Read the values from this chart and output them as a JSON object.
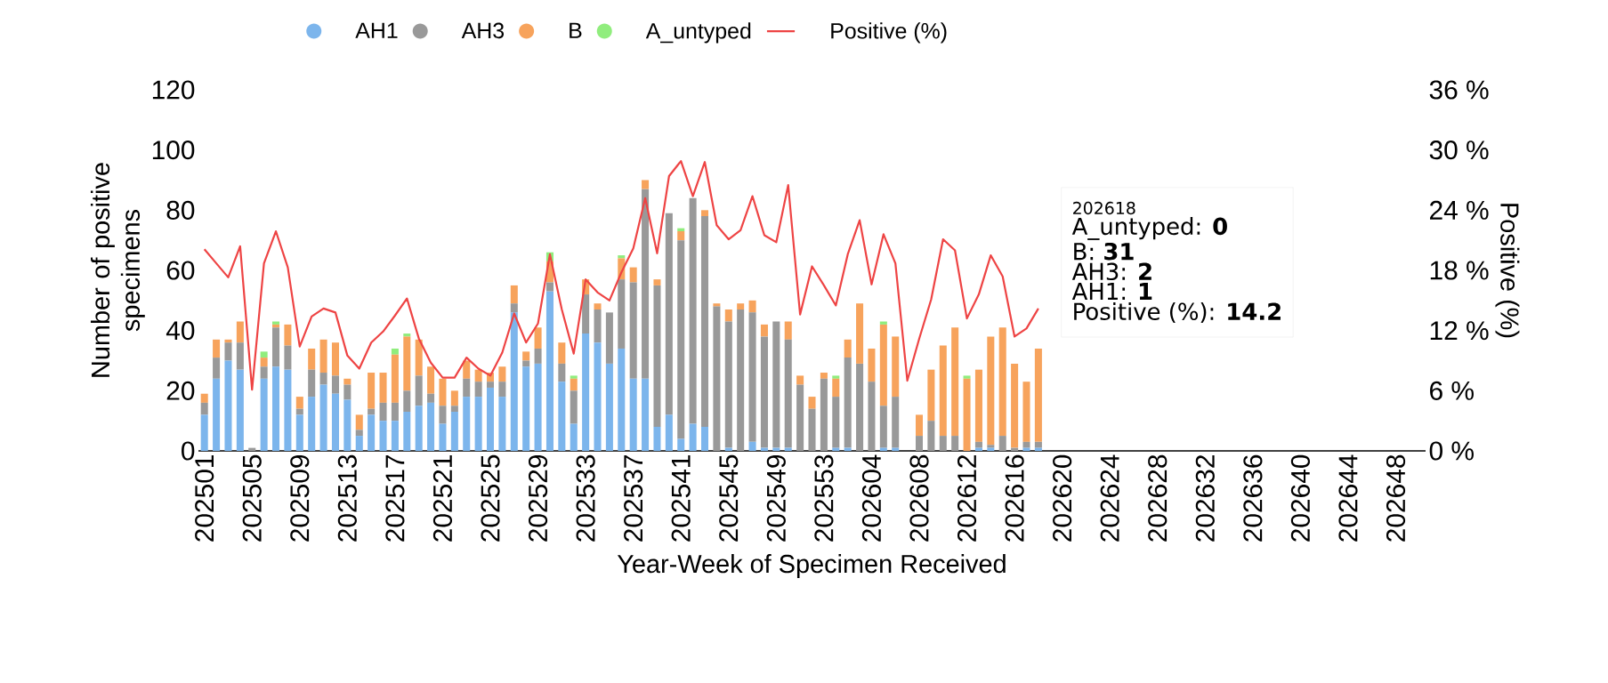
{
  "chart_data": {
    "type": "bar",
    "stacked": true,
    "xlabel": "Year-Week of Specimen Received",
    "ylabel": "Number of positive specimens",
    "y2label": "Positive (%)",
    "categories": [
      "202501",
      null,
      null,
      null,
      "202505",
      null,
      null,
      null,
      "202509",
      null,
      null,
      null,
      "202513",
      null,
      null,
      null,
      "202517",
      null,
      null,
      null,
      "202521",
      null,
      null,
      null,
      "202525",
      null,
      null,
      null,
      "202529",
      null,
      null,
      null,
      "202533",
      null,
      null,
      null,
      "202537",
      null,
      null,
      null,
      "202541",
      null,
      null,
      null,
      "202545",
      null,
      null,
      null,
      "202549",
      null,
      null,
      null,
      "202553",
      null,
      null,
      null,
      "202604",
      null,
      null,
      null,
      "202608",
      null,
      null,
      null,
      "202612",
      null,
      null,
      null,
      "202616",
      null,
      null,
      null,
      "202620",
      null,
      null,
      null,
      "202624",
      null,
      null,
      null,
      "202628",
      null,
      null,
      null,
      "202632",
      null,
      null,
      null,
      "202636",
      null,
      null,
      null,
      "202640",
      null,
      null,
      null,
      "202644",
      null,
      null,
      null,
      "202648",
      null,
      null
    ],
    "series": [
      {
        "name": "AH1",
        "color": "#7cb5ec",
        "values": [
          12,
          24,
          30,
          27,
          0,
          24,
          28,
          27,
          12,
          18,
          22,
          19,
          17,
          5,
          12,
          10,
          10,
          13,
          15,
          16,
          9,
          13,
          18,
          18,
          21,
          18,
          46,
          28,
          29,
          53,
          23,
          9,
          39,
          36,
          29,
          34,
          24,
          24,
          8,
          12,
          4,
          9,
          8,
          0,
          1,
          0,
          3,
          1,
          1,
          1,
          0,
          0,
          0,
          1,
          1,
          0,
          0,
          1,
          1,
          0,
          0,
          0,
          0,
          0,
          0,
          1,
          1,
          0,
          0,
          1,
          1,
          null,
          null,
          null,
          null,
          null,
          null,
          null,
          null,
          null,
          null,
          null,
          null,
          null,
          null,
          null,
          null,
          null,
          null,
          null,
          null,
          null,
          null,
          null,
          null,
          null,
          null,
          null,
          null,
          null,
          null,
          null,
          null
        ]
      },
      {
        "name": "AH3",
        "color": "#999999",
        "values": [
          4,
          7,
          6,
          9,
          1,
          4,
          13,
          8,
          2,
          9,
          4,
          6,
          5,
          2,
          2,
          6,
          6,
          7,
          10,
          3,
          6,
          2,
          6,
          5,
          2,
          5,
          3,
          2,
          5,
          3,
          6,
          11,
          13,
          11,
          17,
          23,
          32,
          63,
          47,
          67,
          66,
          75,
          70,
          48,
          42,
          47,
          43,
          37,
          42,
          36,
          22,
          14,
          24,
          17,
          30,
          29,
          23,
          14,
          17,
          0,
          5,
          10,
          5,
          5,
          0,
          2,
          1,
          5,
          1,
          2,
          2,
          null,
          null,
          null,
          null,
          null,
          null,
          null,
          null,
          null,
          null,
          null,
          null,
          null,
          null,
          null,
          null,
          null,
          null,
          null,
          null,
          null,
          null,
          null,
          null,
          null,
          null,
          null,
          null,
          null,
          null,
          null,
          null
        ]
      },
      {
        "name": "B",
        "color": "#f7a35c",
        "values": [
          3,
          6,
          1,
          7,
          0,
          3,
          1,
          7,
          4,
          7,
          11,
          11,
          2,
          5,
          12,
          10,
          16,
          18,
          12,
          9,
          9,
          5,
          6,
          4,
          3,
          5,
          6,
          3,
          7,
          7,
          7,
          4,
          5,
          2,
          0,
          7,
          5,
          3,
          2,
          0,
          3,
          0,
          2,
          1,
          4,
          2,
          4,
          4,
          0,
          6,
          3,
          4,
          2,
          6,
          6,
          20,
          11,
          27,
          20,
          0,
          7,
          17,
          30,
          36,
          24,
          24,
          36,
          36,
          28,
          20,
          31,
          null,
          null,
          null,
          null,
          null,
          null,
          null,
          null,
          null,
          null,
          null,
          null,
          null,
          null,
          null,
          null,
          null,
          null,
          null,
          null,
          null,
          null,
          null,
          null,
          null,
          null,
          null,
          null,
          null,
          null,
          null,
          null
        ]
      },
      {
        "name": "A_untyped",
        "color": "#90ed7d",
        "values": [
          0,
          0,
          0,
          0,
          0,
          2,
          1,
          0,
          0,
          0,
          0,
          0,
          0,
          0,
          0,
          0,
          2,
          1,
          0,
          0,
          0,
          0,
          0,
          0,
          0,
          0,
          0,
          0,
          0,
          3,
          0,
          1,
          0,
          0,
          0,
          1,
          0,
          0,
          0,
          0,
          1,
          0,
          0,
          0,
          0,
          0,
          0,
          0,
          0,
          0,
          0,
          0,
          0,
          1,
          0,
          0,
          0,
          1,
          0,
          0,
          0,
          0,
          0,
          0,
          1,
          0,
          0,
          0,
          0,
          0,
          0,
          null,
          null,
          null,
          null,
          null,
          null,
          null,
          null,
          null,
          null,
          null,
          null,
          null,
          null,
          null,
          null,
          null,
          null,
          null,
          null,
          null,
          null,
          null,
          null,
          null,
          null,
          null,
          null,
          null,
          null,
          null,
          null
        ]
      },
      {
        "name": "Positive (%)",
        "type": "line",
        "axis": "y2",
        "color": "#ee4444",
        "values": [
          20.1,
          18.7,
          17.3,
          20.4,
          6.1,
          18.7,
          21.9,
          18.3,
          10.4,
          13.4,
          14.2,
          13.8,
          9.5,
          8.2,
          10.8,
          11.9,
          13.5,
          15.2,
          11.2,
          8.8,
          7.3,
          7.3,
          9.3,
          8.2,
          7.5,
          9.8,
          13.7,
          10.8,
          12.7,
          19.6,
          14.1,
          9.7,
          17.1,
          15.8,
          15.0,
          17.8,
          20.2,
          25.2,
          19.7,
          27.4,
          28.9,
          25.4,
          28.8,
          22.5,
          21.1,
          22.0,
          25.4,
          21.5,
          20.8,
          26.5,
          13.6,
          18.4,
          16.5,
          14.5,
          19.6,
          23.0,
          16.6,
          21.6,
          18.7,
          7.0,
          11.2,
          15.1,
          21.1,
          20.0,
          13.2,
          15.6,
          19.5,
          17.4,
          11.4,
          12.2,
          14.2,
          null,
          null,
          null,
          null,
          null,
          null,
          null,
          null,
          null,
          null,
          null,
          null,
          null,
          null,
          null,
          null,
          null,
          null,
          null,
          null,
          null,
          null,
          null,
          null,
          null,
          null,
          null,
          null,
          null,
          null,
          null,
          null
        ]
      }
    ],
    "ylim": [
      0,
      120
    ],
    "yticks": [
      0,
      20,
      40,
      60,
      80,
      100,
      120
    ],
    "y2lim": [
      0,
      36
    ],
    "y2ticks": [
      {
        "value": 0,
        "label": "0 %"
      },
      {
        "value": 6,
        "label": "6 %"
      },
      {
        "value": 12,
        "label": "12 %"
      },
      {
        "value": 18,
        "label": "18 %"
      },
      {
        "value": 24,
        "label": "24 %"
      },
      {
        "value": 30,
        "label": "30 %"
      },
      {
        "value": 36,
        "label": "36 %"
      }
    ],
    "legend": "top",
    "annotations": [
      "202618",
      "A_untyped: **0**",
      "B: **31**",
      "AH3: **2**",
      "AH1: **1**",
      "Positive (%): **14.2**"
    ]
  }
}
